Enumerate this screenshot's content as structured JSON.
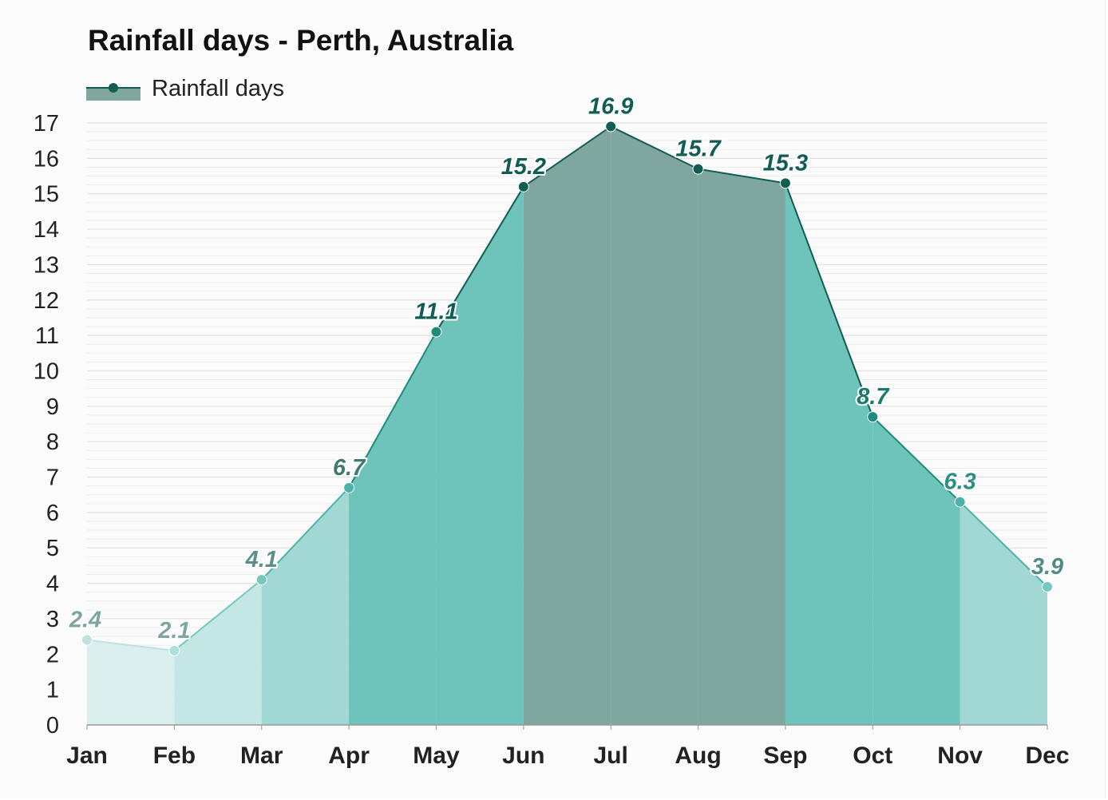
{
  "chart_data": {
    "type": "area",
    "title": "Rainfall days - Perth, Australia",
    "categories": [
      "Jan",
      "Feb",
      "Mar",
      "Apr",
      "May",
      "Jun",
      "Jul",
      "Aug",
      "Sep",
      "Oct",
      "Nov",
      "Dec"
    ],
    "series": [
      {
        "name": "Rainfall days",
        "values": [
          2.4,
          2.1,
          4.1,
          6.7,
          11.1,
          15.2,
          16.9,
          15.7,
          15.3,
          8.7,
          6.3,
          3.9
        ]
      }
    ],
    "ylim": [
      0,
      17
    ],
    "yticks": [
      0,
      1,
      2,
      3,
      4,
      5,
      6,
      7,
      8,
      9,
      10,
      11,
      12,
      13,
      14,
      15,
      16,
      17
    ],
    "xlabel": "",
    "ylabel": "",
    "grid": true,
    "legend": "top-left",
    "data_labels": [
      "2.4",
      "2.1",
      "4.1",
      "6.7",
      "11.1",
      "15.2",
      "16.9",
      "15.7",
      "15.3",
      "8.7",
      "6.3",
      "3.9"
    ],
    "colors": {
      "series_line": "#115d52",
      "legend_fill": "#7fa79f",
      "months": [
        "#dcefef",
        "#c4e6e4",
        "#a2d8d3",
        "#6ec3bb",
        "#6ec3bb",
        "#7fa79f",
        "#7fa79f",
        "#7fa79f",
        "#6ec3bb",
        "#6ec3bb",
        "#a2d8d3",
        "#bce2e0"
      ],
      "markers": [
        "#bfe2e0",
        "#aee0dc",
        "#74c9bf",
        "#4bb3a8",
        "#1f8b7d",
        "#115d52",
        "#115d52",
        "#115d52",
        "#115d52",
        "#1f8b7d",
        "#4bb3a8",
        "#74c9bf"
      ],
      "labels": [
        "#7ea5a1",
        "#7ea5a1",
        "#5e8e89",
        "#3f7a73",
        "#115d52",
        "#115d52",
        "#115d52",
        "#115d52",
        "#115d52",
        "#1a7a6e",
        "#2f8e84",
        "#4f8c86"
      ]
    }
  }
}
